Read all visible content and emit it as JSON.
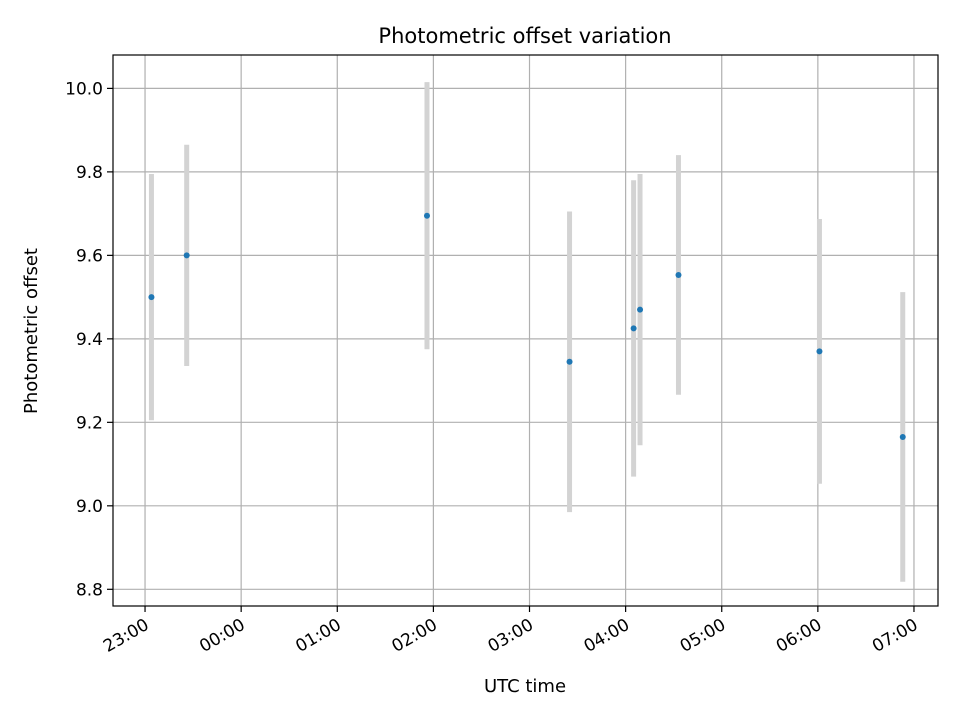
{
  "chart_data": {
    "type": "scatter",
    "title": "Photometric offset variation",
    "xlabel": "UTC time",
    "ylabel": "Photometric offset",
    "xlim": [
      "22:40",
      "07:15"
    ],
    "ylim": [
      8.76,
      10.08
    ],
    "x_ticks": [
      "23:00",
      "00:00",
      "01:00",
      "02:00",
      "03:00",
      "04:00",
      "05:00",
      "06:00",
      "07:00"
    ],
    "y_ticks": [
      "8.8",
      "9.0",
      "9.2",
      "9.4",
      "9.6",
      "9.8",
      "10.0"
    ],
    "grid": true,
    "point_color": "#1f77b4",
    "errorbar_color": "#d3d3d3",
    "points": [
      {
        "t": "23:04",
        "y": 9.5,
        "err": 0.295
      },
      {
        "t": "23:26",
        "y": 9.6,
        "err": 0.265
      },
      {
        "t": "01:56",
        "y": 9.695,
        "err": 0.32
      },
      {
        "t": "03:25",
        "y": 9.345,
        "err": 0.36
      },
      {
        "t": "04:05",
        "y": 9.425,
        "err": 0.355
      },
      {
        "t": "04:09",
        "y": 9.47,
        "err": 0.325
      },
      {
        "t": "04:33",
        "y": 9.553,
        "err": 0.287
      },
      {
        "t": "06:01",
        "y": 9.37,
        "err": 0.317
      },
      {
        "t": "06:53",
        "y": 9.165,
        "err": 0.347
      }
    ]
  }
}
